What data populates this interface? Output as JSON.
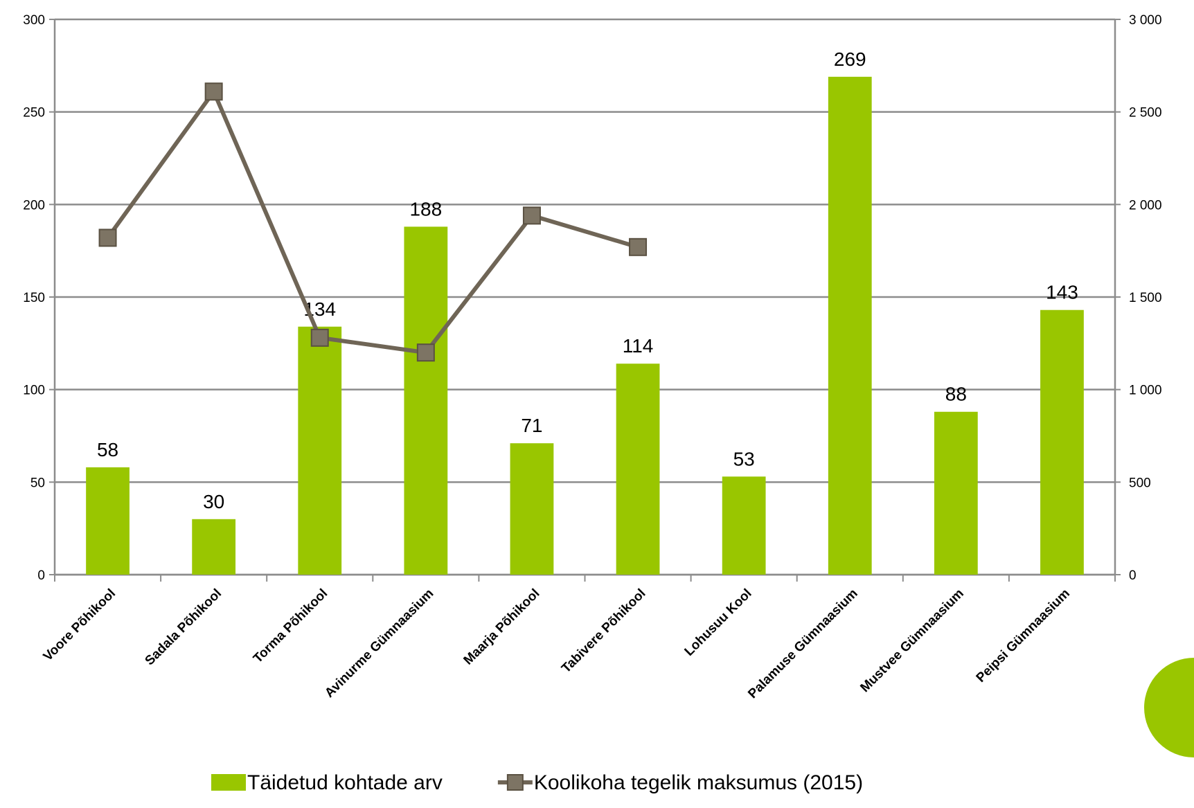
{
  "chart_data": {
    "type": "bar",
    "categories": [
      "Voore Põhikool",
      "Sadala Põhikool",
      "Torma Põhikool",
      "Avinurme Gümnaasium",
      "Maarja Põhikool",
      "Tabivere Põhikool",
      "Lohusuu Kool",
      "Palamuse Gümnaasium",
      "Mustvee Gümnaasium",
      "Peipsi Gümnaasium"
    ],
    "series": [
      {
        "name": "Täidetud kohtade arv",
        "type": "bar",
        "color": "#99c600",
        "values": [
          58,
          30,
          134,
          188,
          71,
          114,
          53,
          269,
          88,
          143
        ]
      },
      {
        "name": "Koolikoha tegelik maksumus (2015)",
        "type": "line",
        "axis": "y2",
        "color": "#6f6556",
        "values": [
          1820,
          2610,
          1280,
          1200,
          1940,
          1770,
          null,
          null,
          null,
          null
        ]
      }
    ],
    "ylim": [
      0,
      300
    ],
    "yticks": [
      0,
      50,
      100,
      150,
      200,
      250,
      300
    ],
    "y2lim": [
      0,
      3000
    ],
    "y2ticks": [
      0,
      500,
      {
        "value": 1000,
        "label": "1 000"
      },
      {
        "value": 1500,
        "label": "1 500"
      },
      {
        "value": 2000,
        "label": "2 000"
      },
      {
        "value": 2500,
        "label": "2 500"
      },
      {
        "value": 3000,
        "label": "3 000"
      }
    ],
    "grid": true,
    "legend": "bottom"
  }
}
